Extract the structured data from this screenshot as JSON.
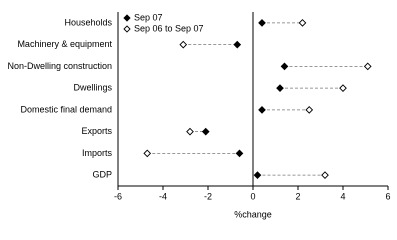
{
  "chart_data": {
    "type": "dot",
    "categories": [
      "Households",
      "Machinery & equipment",
      "Non-Dwelling construction",
      "Dwellings",
      "Domestic final demand",
      "Exports",
      "Imports",
      "GDP"
    ],
    "series": [
      {
        "name": "Sep 07",
        "color": "#000000",
        "filled": true,
        "values": [
          0.4,
          -0.7,
          1.4,
          1.2,
          0.4,
          -2.1,
          -0.6,
          0.2
        ]
      },
      {
        "name": "Sep 06 to Sep 07",
        "color": "#000000",
        "filled": false,
        "values": [
          2.2,
          -3.1,
          5.1,
          4.0,
          2.5,
          -2.8,
          -4.7,
          3.2
        ]
      }
    ],
    "xlabel": "%change",
    "xlim": [
      -6,
      6
    ],
    "xticks": [
      -6,
      -4,
      -2,
      0,
      2,
      4,
      6
    ]
  }
}
